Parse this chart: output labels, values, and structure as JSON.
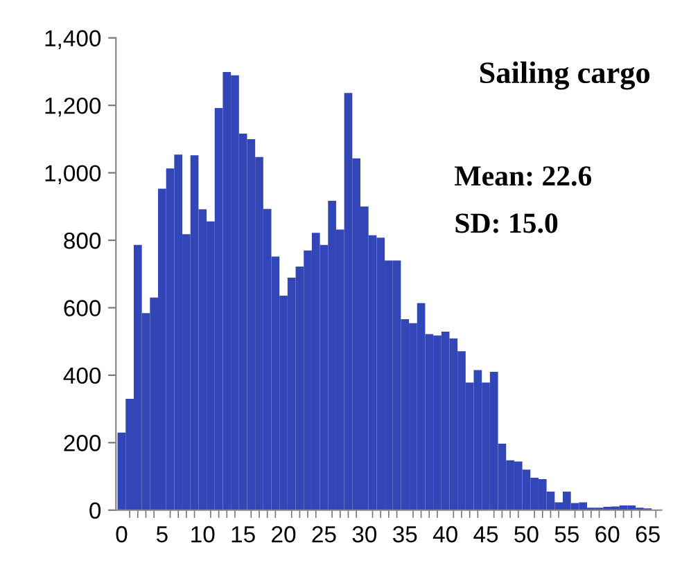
{
  "chart_data": {
    "type": "bar",
    "title": "Sailing cargo",
    "annotations": [
      "Mean: 22.6",
      "SD: 15.0"
    ],
    "categories": [
      "0",
      null,
      null,
      null,
      null,
      "5",
      null,
      null,
      null,
      null,
      "10",
      null,
      null,
      null,
      null,
      "15",
      null,
      null,
      null,
      null,
      "20",
      null,
      null,
      null,
      null,
      "25",
      null,
      null,
      null,
      null,
      "30",
      null,
      null,
      null,
      null,
      "35",
      null,
      null,
      null,
      null,
      "40",
      null,
      null,
      null,
      null,
      "45",
      null,
      null,
      null,
      null,
      "50",
      null,
      null,
      null,
      null,
      "55",
      null,
      null,
      null,
      null,
      "60",
      null,
      null,
      null,
      null,
      "65",
      null
    ],
    "values": [
      230,
      330,
      786,
      584,
      630,
      953,
      1013,
      1054,
      818,
      1052,
      892,
      856,
      1192,
      1299,
      1289,
      1116,
      1100,
      1047,
      893,
      752,
      636,
      689,
      722,
      770,
      822,
      786,
      917,
      832,
      1237,
      1043,
      900,
      815,
      808,
      740,
      740,
      566,
      554,
      614,
      522,
      518,
      529,
      509,
      471,
      378,
      415,
      378,
      410,
      197,
      148,
      144,
      120,
      96,
      92,
      55,
      23,
      55,
      21,
      23,
      7,
      7,
      10,
      11,
      14,
      14,
      7,
      5,
      0
    ],
    "color": "#3346b8",
    "ylim": [
      0,
      1400
    ],
    "yticks": [
      0,
      200,
      400,
      600,
      800,
      {
        "value": 1000,
        "label": "1,000"
      },
      {
        "value": 1200,
        "label": "1,200"
      },
      {
        "value": 1400,
        "label": "1,400"
      }
    ],
    "grid": false
  }
}
